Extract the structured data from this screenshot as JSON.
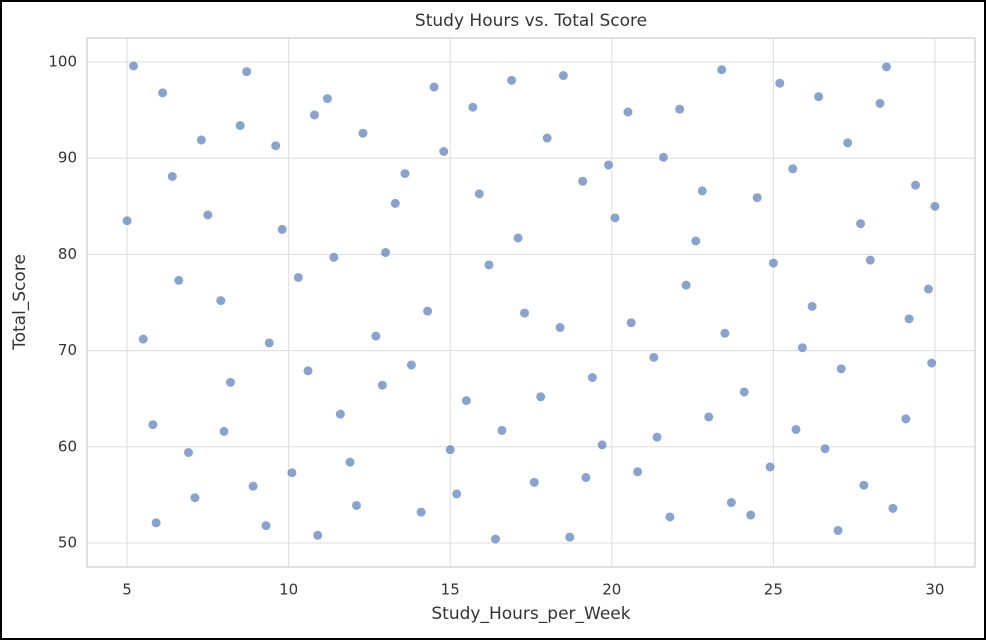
{
  "chart_data": {
    "type": "scatter",
    "title": "Study Hours vs. Total Score",
    "xlabel": "Study_Hours_per_Week",
    "ylabel": "Total_Score",
    "color": "#4c72b0",
    "grid": true,
    "xlim": [
      3.76,
      31.24
    ],
    "ylim": [
      47.5,
      102.5
    ],
    "xticks": [
      5,
      10,
      15,
      20,
      25,
      30
    ],
    "yticks": [
      50,
      60,
      70,
      80,
      90,
      100
    ],
    "x": [
      5.2,
      5.8,
      6.4,
      7.1,
      7.9,
      8.5,
      9.3,
      9.8,
      10.6,
      11.2,
      11.9,
      12.7,
      13.3,
      14.1,
      14.8,
      15.5,
      16.2,
      16.9,
      17.6,
      18.4,
      19.1,
      19.7,
      20.5,
      21.3,
      21.8,
      22.6,
      23.4,
      24.1,
      24.9,
      25.6,
      26.2,
      27.0,
      27.7,
      28.3,
      29.1,
      29.8,
      5.5,
      6.1,
      6.9,
      7.5,
      8.2,
      8.9,
      9.6,
      10.3,
      10.9,
      11.6,
      12.3,
      13.0,
      13.8,
      14.5,
      15.2,
      15.9,
      16.6,
      17.3,
      18.0,
      18.7,
      19.4,
      20.1,
      20.8,
      21.6,
      22.3,
      23.0,
      23.7,
      24.5,
      25.2,
      25.9,
      26.6,
      27.3,
      28.0,
      28.7,
      29.4,
      29.9,
      5.0,
      5.9,
      6.6,
      7.3,
      8.0,
      8.7,
      9.4,
      10.1,
      10.8,
      11.4,
      12.1,
      12.9,
      13.6,
      14.3,
      15.0,
      15.7,
      16.4,
      17.1,
      17.8,
      18.5,
      19.2,
      19.9,
      20.6,
      21.4,
      22.1,
      22.8,
      23.5,
      24.3,
      25.0,
      25.7,
      26.4,
      27.1,
      27.8,
      28.5,
      29.2,
      30.0
    ],
    "values": [
      99.6,
      62.3,
      88.1,
      54.7,
      75.2,
      93.4,
      51.8,
      82.6,
      67.9,
      96.2,
      58.4,
      71.5,
      85.3,
      53.2,
      90.7,
      64.8,
      78.9,
      98.1,
      56.3,
      72.4,
      87.6,
      60.2,
      94.8,
      69.3,
      52.7,
      81.4,
      99.2,
      65.7,
      57.9,
      88.9,
      74.6,
      51.3,
      83.2,
      95.7,
      62.9,
      76.4,
      71.2,
      96.8,
      59.4,
      84.1,
      66.7,
      55.9,
      91.3,
      77.6,
      50.8,
      63.4,
      92.6,
      80.2,
      68.5,
      97.4,
      55.1,
      86.3,
      61.7,
      73.9,
      92.1,
      50.6,
      67.2,
      83.8,
      57.4,
      90.1,
      76.8,
      63.1,
      54.2,
      85.9,
      97.8,
      70.3,
      59.8,
      91.6,
      79.4,
      53.6,
      87.2,
      68.7,
      83.5,
      52.1,
      77.3,
      91.9,
      61.6,
      99.0,
      70.8,
      57.3,
      94.5,
      79.7,
      53.9,
      66.4,
      88.4,
      74.1,
      59.7,
      95.3,
      50.4,
      81.7,
      65.2,
      98.6,
      56.8,
      89.3,
      72.9,
      61.0,
      95.1,
      86.6,
      71.8,
      52.9,
      79.1,
      61.8,
      96.4,
      68.1,
      56.0,
      99.5,
      73.3,
      85.0
    ]
  }
}
